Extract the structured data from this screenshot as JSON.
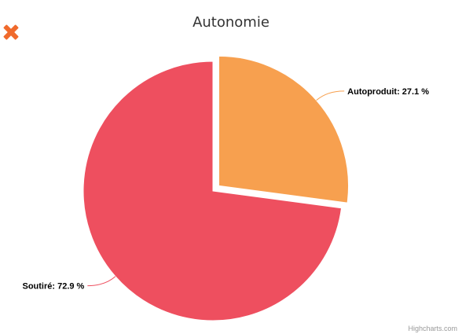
{
  "close_icon": "close-icon",
  "chart_data": {
    "type": "pie",
    "title": "Autonomie",
    "slices": [
      {
        "name": "Autoproduit",
        "value": 27.1,
        "color": "#f7a04f",
        "label": "Autoproduit: 27.1 %",
        "sliced": true
      },
      {
        "name": "Soutiré",
        "value": 72.9,
        "color": "#ee4f5f",
        "label": "Soutiré: 72.9 %",
        "sliced": false
      }
    ]
  },
  "credits": "Highcharts.com"
}
